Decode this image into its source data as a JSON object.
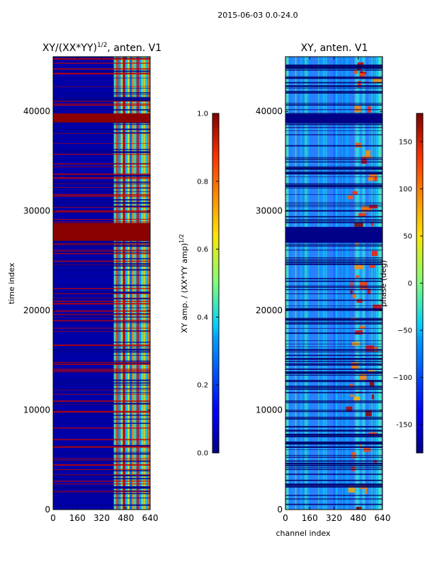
{
  "figure": {
    "suptitle": "2015-06-03 0.0-24.0"
  },
  "chart_data": [
    {
      "type": "heatmap",
      "title_main": "XY/(XX*YY)",
      "title_exp": "1/2",
      "title_tail": ", anten. V1",
      "xlabel": "",
      "ylabel": "time index",
      "xlim": [
        0,
        640
      ],
      "ylim": [
        0,
        45500
      ],
      "xticks": [
        "0",
        "160",
        "320",
        "480",
        "640"
      ],
      "yticks": [
        "0",
        "10000",
        "20000",
        "30000",
        "40000"
      ],
      "colormap": "jet",
      "colorbar": {
        "label_main": "XY amp. / (XX*YY amp)",
        "label_exp": "1/2",
        "range": [
          0.0,
          1.0
        ],
        "ticks": [
          "0.0",
          "0.2",
          "0.4",
          "0.6",
          "0.8",
          "1.0"
        ]
      },
      "bright_bands": [
        [
          27000,
          28800
        ],
        [
          38900,
          39800
        ]
      ],
      "active_channels": [
        [
          400,
          640
        ]
      ]
    },
    {
      "type": "heatmap",
      "title": "XY, anten. V1",
      "xlabel": "channel index",
      "ylabel": "",
      "xlim": [
        0,
        640
      ],
      "ylim": [
        0,
        45500
      ],
      "xticks": [
        "0",
        "160",
        "320",
        "480",
        "640"
      ],
      "yticks": [
        "0",
        "10000",
        "20000",
        "30000",
        "40000"
      ],
      "colormap": "jet",
      "colorbar": {
        "label": "phase (deg)",
        "range": [
          -180,
          180
        ],
        "ticks": [
          "-150",
          "−100",
          "−50",
          "0",
          "50",
          "100",
          "150"
        ]
      },
      "dark_bands": [
        [
          26800,
          28400
        ],
        [
          38800,
          39700
        ]
      ]
    }
  ]
}
